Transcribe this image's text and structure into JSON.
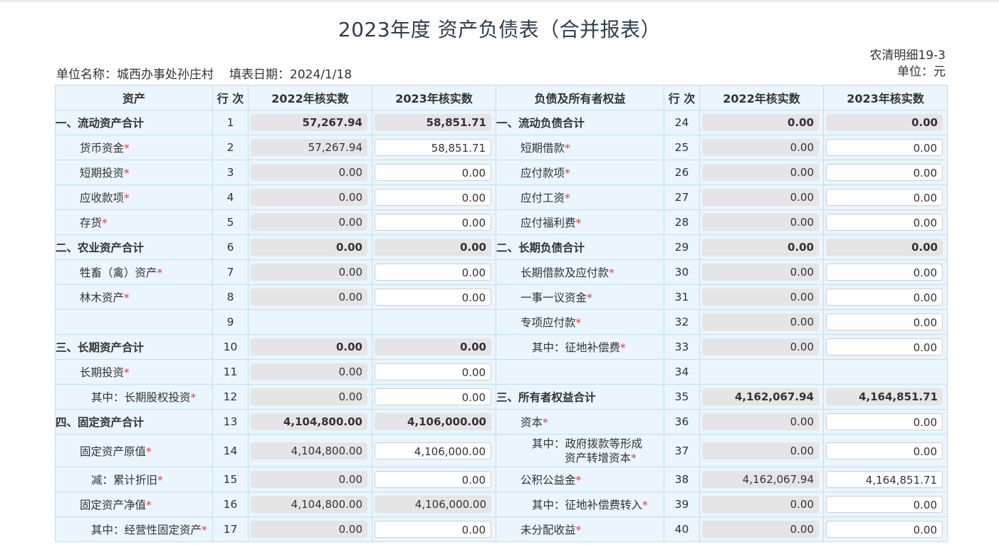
{
  "title": "2023年度 资产负债表（合并报表）",
  "unit_label": "单位名称：城西办事处孙庄村",
  "date_label": "填表日期：2024/1/18",
  "report_code": "农清明细19-3",
  "currency_unit": "单位：元",
  "headers": [
    "资产",
    "行 次",
    "2022年核实数",
    "2023年核实数",
    "负债及所有者权益",
    "行 次",
    "2022年核实数",
    "2023年核实数"
  ],
  "rows": [
    {
      "ln": "一、流动资产合计",
      "lst": false,
      "lsty": "bold",
      "ll": "1",
      "l22": "57,267.94",
      "l23": "58,851.71",
      "lt": "total",
      "rn": "一、流动负债合计",
      "rst": false,
      "rsty": "bold",
      "rl": "24",
      "r22": "0.00",
      "r23": "0.00",
      "rt": "total"
    },
    {
      "ln": "货币资金",
      "lst": true,
      "lsty": "ind1",
      "ll": "2",
      "l22": "57,267.94",
      "l23": "58,851.71",
      "lt": "input",
      "rn": "短期借款",
      "rst": true,
      "rsty": "ind1",
      "rl": "25",
      "r22": "0.00",
      "r23": "0.00",
      "rt": "input"
    },
    {
      "ln": "短期投资",
      "lst": true,
      "lsty": "ind1",
      "ll": "3",
      "l22": "0.00",
      "l23": "0.00",
      "lt": "input",
      "rn": "应付款项",
      "rst": true,
      "rsty": "ind1",
      "rl": "26",
      "r22": "0.00",
      "r23": "0.00",
      "rt": "input"
    },
    {
      "ln": "应收款项",
      "lst": true,
      "lsty": "ind1",
      "ll": "4",
      "l22": "0.00",
      "l23": "0.00",
      "lt": "input",
      "rn": "应付工资",
      "rst": true,
      "rsty": "ind1",
      "rl": "27",
      "r22": "0.00",
      "r23": "0.00",
      "rt": "input"
    },
    {
      "ln": "存货",
      "lst": true,
      "lsty": "ind1",
      "ll": "5",
      "l22": "0.00",
      "l23": "0.00",
      "lt": "input",
      "rn": "应付福利费",
      "rst": true,
      "rsty": "ind1",
      "rl": "28",
      "r22": "0.00",
      "r23": "0.00",
      "rt": "input"
    },
    {
      "ln": "二、农业资产合计",
      "lst": false,
      "lsty": "bold",
      "ll": "6",
      "l22": "0.00",
      "l23": "0.00",
      "lt": "total",
      "rn": "二、长期负债合计",
      "rst": false,
      "rsty": "bold",
      "rl": "29",
      "r22": "0.00",
      "r23": "0.00",
      "rt": "total"
    },
    {
      "ln": "牲畜（禽）资产",
      "lst": true,
      "lsty": "ind1",
      "ll": "7",
      "l22": "0.00",
      "l23": "0.00",
      "lt": "input",
      "rn": "长期借款及应付款",
      "rst": true,
      "rsty": "ind1",
      "rl": "30",
      "r22": "0.00",
      "r23": "0.00",
      "rt": "input"
    },
    {
      "ln": "林木资产",
      "lst": true,
      "lsty": "ind1",
      "ll": "8",
      "l22": "0.00",
      "l23": "0.00",
      "lt": "input",
      "rn": "一事一议资金",
      "rst": true,
      "rsty": "ind1",
      "rl": "31",
      "r22": "0.00",
      "r23": "0.00",
      "rt": "input"
    },
    {
      "ln": "",
      "lst": false,
      "lsty": "ind1",
      "ll": "9",
      "l22": "",
      "l23": "",
      "lt": "empty",
      "rn": "专项应付款",
      "rst": true,
      "rsty": "ind1",
      "rl": "32",
      "r22": "0.00",
      "r23": "0.00",
      "rt": "input"
    },
    {
      "ln": "三、长期资产合计",
      "lst": false,
      "lsty": "bold",
      "ll": "10",
      "l22": "0.00",
      "l23": "0.00",
      "lt": "total",
      "rn": "其中：征地补偿费",
      "rst": true,
      "rsty": "ind2",
      "rl": "33",
      "r22": "0.00",
      "r23": "0.00",
      "rt": "input"
    },
    {
      "ln": "长期投资",
      "lst": true,
      "lsty": "ind1",
      "ll": "11",
      "l22": "0.00",
      "l23": "0.00",
      "lt": "input",
      "rn": "",
      "rst": false,
      "rsty": "ind1",
      "rl": "34",
      "r22": "",
      "r23": "",
      "rt": "empty"
    },
    {
      "ln": "其中：长期股权投资",
      "lst": true,
      "lsty": "ind2",
      "ll": "12",
      "l22": "0.00",
      "l23": "0.00",
      "lt": "input",
      "rn": "三、所有者权益合计",
      "rst": false,
      "rsty": "bold",
      "rl": "35",
      "r22": "4,162,067.94",
      "r23": "4,164,851.71",
      "rt": "total"
    },
    {
      "ln": "四、固定资产合计",
      "lst": false,
      "lsty": "bold",
      "ll": "13",
      "l22": "4,104,800.00",
      "l23": "4,106,000.00",
      "lt": "total",
      "rn": "资本",
      "rst": true,
      "rsty": "ind1",
      "rl": "36",
      "r22": "0.00",
      "r23": "0.00",
      "rt": "input"
    },
    {
      "ln": "固定资产原值",
      "lst": true,
      "lsty": "ind1",
      "ll": "14",
      "l22": "4,104,800.00",
      "l23": "4,106,000.00",
      "lt": "input",
      "rn": "其中：政府拨款等形成",
      "rn2": "资产转增资本",
      "rst": true,
      "rsty": "ind2w",
      "rl": "37",
      "r22": "0.00",
      "r23": "0.00",
      "rt": "input"
    },
    {
      "ln": "减：累计折旧",
      "lst": true,
      "lsty": "ind2",
      "ll": "15",
      "l22": "0.00",
      "l23": "0.00",
      "lt": "input",
      "rn": "公积公益金",
      "rst": true,
      "rsty": "ind1",
      "rl": "38",
      "r22": "4,162,067.94",
      "r23": "4,164,851.71",
      "rt": "input"
    },
    {
      "ln": "固定资产净值",
      "lst": true,
      "lsty": "ind1",
      "ll": "16",
      "l22": "4,104,800.00",
      "l23": "4,106,000.00",
      "lt": "readonly",
      "rn": "其中：征地补偿费转入",
      "rst": true,
      "rsty": "ind2",
      "rl": "39",
      "r22": "0.00",
      "r23": "0.00",
      "rt": "input"
    },
    {
      "ln": "其中：经营性固定资产",
      "lst": true,
      "lsty": "ind2",
      "ll": "17",
      "l22": "0.00",
      "l23": "0.00",
      "lt": "input",
      "rn": "未分配收益",
      "rst": true,
      "rsty": "ind1",
      "rl": "40",
      "r22": "0.00",
      "r23": "0.00",
      "rt": "input"
    }
  ],
  "colors": {
    "header_bg": "#eaf5fd",
    "border": "#bfe0ee",
    "readonly_bg": "#e5e5e5",
    "required_star": "#e53935"
  }
}
